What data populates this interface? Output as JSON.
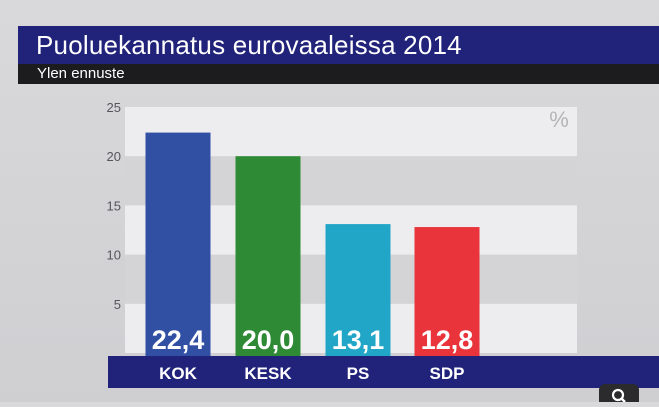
{
  "header": {
    "title": "Puoluekannatus eurovaaleissa 2014",
    "subtitle": "Ylen ennuste"
  },
  "colors": {
    "title_bar": "#21237a",
    "subtitle_bar": "#1c1c1e",
    "KOK": "#3150a4",
    "KESK": "#2f8a35",
    "PS": "#22a6c8",
    "SDP": "#e8343a"
  },
  "chart_data": {
    "type": "bar",
    "categories": [
      "KOK",
      "KESK",
      "PS",
      "SDP"
    ],
    "values": [
      22.4,
      20.0,
      13.1,
      12.8
    ],
    "value_labels": [
      "22,4",
      "20,0",
      "13,1",
      "12,8"
    ],
    "unit_label": "%",
    "ylim": [
      0,
      25
    ],
    "yticks": [
      5,
      10,
      15,
      20,
      25
    ],
    "grid": "alternating bands"
  },
  "search_button": {
    "icon": "search-icon"
  }
}
